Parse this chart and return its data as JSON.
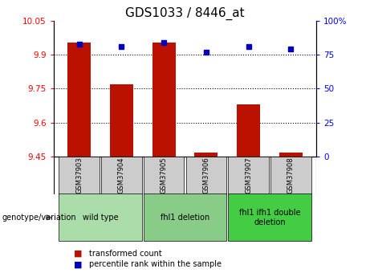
{
  "title": "GDS1033 / 8446_at",
  "samples": [
    "GSM37903",
    "GSM37904",
    "GSM37905",
    "GSM37906",
    "GSM37907",
    "GSM37908"
  ],
  "transformed_counts": [
    9.955,
    9.77,
    9.955,
    9.468,
    9.68,
    9.468
  ],
  "percentile_ranks": [
    83,
    81,
    84,
    77,
    81,
    79
  ],
  "ylim_left": [
    9.45,
    10.05
  ],
  "ylim_right": [
    0,
    100
  ],
  "yticks_left": [
    9.45,
    9.6,
    9.75,
    9.9,
    10.05
  ],
  "yticks_right": [
    0,
    25,
    50,
    75,
    100
  ],
  "ytick_labels_right": [
    "0",
    "25",
    "50",
    "75",
    "100%"
  ],
  "bar_color": "#bb1100",
  "marker_color": "#0000bb",
  "bar_width": 0.55,
  "group_labels": [
    "wild type",
    "fhl1 deletion",
    "fhl1 ifh1 double\ndeletion"
  ],
  "group_ranges": [
    [
      0,
      1
    ],
    [
      2,
      3
    ],
    [
      4,
      5
    ]
  ],
  "group_colors": [
    "#aaddaa",
    "#88cc88",
    "#44cc44"
  ],
  "genotype_label": "genotype/variation",
  "legend_bar_label": "transformed count",
  "legend_marker_label": "percentile rank within the sample",
  "grid_color": "black",
  "grid_linewidth": 0.8,
  "title_fontsize": 11,
  "tick_fontsize": 7.5,
  "sample_bg_color": "#cccccc"
}
